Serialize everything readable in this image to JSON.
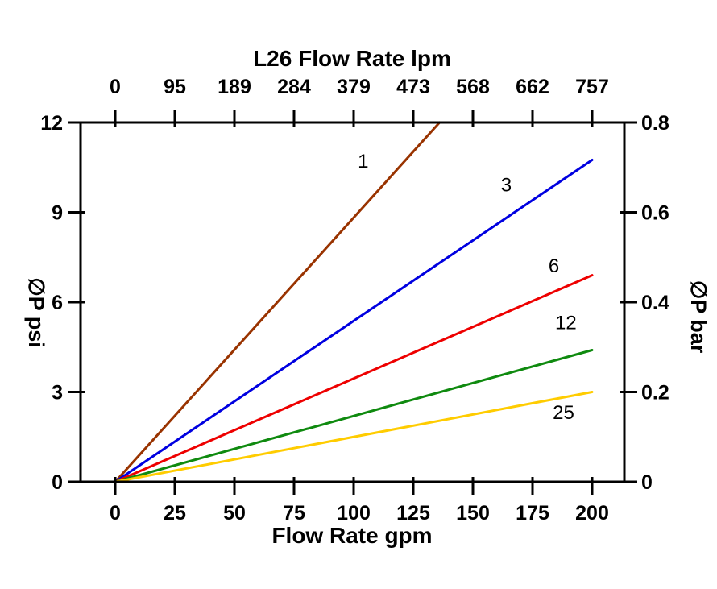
{
  "page": {
    "background": "#ffffff"
  },
  "chart_data": {
    "type": "line",
    "title": "L26 Flow Rate lpm",
    "xlabel": "Flow Rate gpm",
    "ylabel": "∅P psi",
    "ylabel_right": "∅P bar",
    "grid": false,
    "legend": "inline-labels-on-lines",
    "axes": {
      "x_bottom": {
        "label": "Flow Rate gpm",
        "ticks": [
          0,
          25,
          50,
          75,
          100,
          125,
          150,
          175,
          200
        ],
        "range": [
          0,
          200
        ]
      },
      "x_top": {
        "label": "L26 Flow Rate lpm",
        "ticks": [
          0,
          95,
          189,
          284,
          379,
          473,
          568,
          662,
          757
        ],
        "range": [
          0,
          757
        ]
      },
      "y_left": {
        "label": "∅P psi",
        "ticks": [
          0,
          3,
          6,
          9,
          12
        ],
        "range": [
          0,
          12
        ]
      },
      "y_right": {
        "label": "∅P bar",
        "ticks": [
          0,
          0.2,
          0.4,
          0.6,
          0.8
        ],
        "range": [
          0,
          0.8
        ]
      }
    },
    "series": [
      {
        "name": "1",
        "color": "#993300",
        "points": [
          [
            0,
            0
          ],
          [
            136,
            12
          ]
        ],
        "label_at": [
          104,
          10.5
        ]
      },
      {
        "name": "3",
        "color": "#0000e0",
        "points": [
          [
            0,
            0
          ],
          [
            200,
            10.75
          ]
        ],
        "label_at": [
          164,
          9.7
        ]
      },
      {
        "name": "6",
        "color": "#ee0000",
        "points": [
          [
            0,
            0
          ],
          [
            200,
            6.9
          ]
        ],
        "label_at": [
          184,
          7.0
        ]
      },
      {
        "name": "12",
        "color": "#0f8a0f",
        "points": [
          [
            0,
            0
          ],
          [
            200,
            4.4
          ]
        ],
        "label_at": [
          189,
          5.1
        ]
      },
      {
        "name": "25",
        "color": "#ffcc00",
        "points": [
          [
            0,
            0
          ],
          [
            200,
            3.0
          ]
        ],
        "label_at": [
          188,
          2.1
        ]
      }
    ]
  }
}
